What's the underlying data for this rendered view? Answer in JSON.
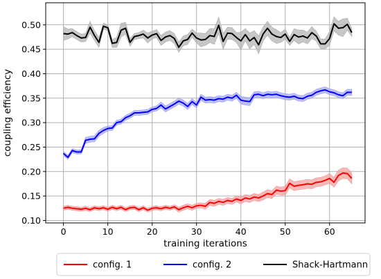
{
  "chart_data": {
    "type": "line",
    "title": "",
    "xlabel": "training iterations",
    "ylabel": "coupling efficiency",
    "xlim": [
      -4,
      68
    ],
    "ylim": [
      0.095,
      0.545
    ],
    "xticks": [
      0,
      10,
      20,
      30,
      40,
      50,
      60
    ],
    "yticks": [
      0.1,
      0.15,
      0.2,
      0.25,
      0.3,
      0.35,
      0.4,
      0.45,
      0.5
    ],
    "ytick_labels": [
      "0.10",
      "0.15",
      "0.20",
      "0.25",
      "0.30",
      "0.35",
      "0.40",
      "0.45",
      "0.50"
    ],
    "grid": true,
    "legend_position": "below plot",
    "x": [
      0,
      1,
      2,
      3,
      4,
      5,
      6,
      7,
      8,
      9,
      10,
      11,
      12,
      13,
      14,
      15,
      16,
      17,
      18,
      19,
      20,
      21,
      22,
      23,
      24,
      25,
      26,
      27,
      28,
      29,
      30,
      31,
      32,
      33,
      34,
      35,
      36,
      37,
      38,
      39,
      40,
      41,
      42,
      43,
      44,
      45,
      46,
      47,
      48,
      49,
      50,
      51,
      52,
      53,
      54,
      55,
      56,
      57,
      58,
      59,
      60,
      61,
      62,
      63,
      64,
      65
    ],
    "series": [
      {
        "name": "config. 1",
        "color": "#ff0000",
        "band_color": "#f4a0a0",
        "values": [
          0.125,
          0.127,
          0.125,
          0.124,
          0.123,
          0.125,
          0.122,
          0.126,
          0.124,
          0.126,
          0.123,
          0.127,
          0.124,
          0.127,
          0.122,
          0.126,
          0.127,
          0.122,
          0.126,
          0.121,
          0.125,
          0.126,
          0.124,
          0.127,
          0.125,
          0.128,
          0.122,
          0.126,
          0.129,
          0.126,
          0.13,
          0.131,
          0.129,
          0.137,
          0.135,
          0.139,
          0.137,
          0.141,
          0.139,
          0.144,
          0.141,
          0.146,
          0.144,
          0.148,
          0.146,
          0.15,
          0.155,
          0.153,
          0.162,
          0.16,
          0.161,
          0.176,
          0.17,
          0.172,
          0.173,
          0.175,
          0.174,
          0.178,
          0.179,
          0.182,
          0.186,
          0.178,
          0.192,
          0.197,
          0.196,
          0.186
        ],
        "band": [
          0.004,
          0.004,
          0.004,
          0.004,
          0.004,
          0.004,
          0.004,
          0.004,
          0.004,
          0.004,
          0.004,
          0.004,
          0.004,
          0.004,
          0.004,
          0.004,
          0.004,
          0.004,
          0.004,
          0.004,
          0.004,
          0.004,
          0.004,
          0.004,
          0.004,
          0.004,
          0.005,
          0.005,
          0.005,
          0.005,
          0.005,
          0.005,
          0.006,
          0.006,
          0.006,
          0.006,
          0.006,
          0.006,
          0.006,
          0.006,
          0.007,
          0.007,
          0.007,
          0.007,
          0.007,
          0.008,
          0.008,
          0.008,
          0.008,
          0.008,
          0.009,
          0.009,
          0.009,
          0.009,
          0.009,
          0.009,
          0.009,
          0.009,
          0.009,
          0.009,
          0.01,
          0.01,
          0.011,
          0.011,
          0.011,
          0.011
        ]
      },
      {
        "name": "config. 2",
        "color": "#0000ff",
        "band_color": "#a8a8f4",
        "values": [
          0.237,
          0.229,
          0.243,
          0.24,
          0.24,
          0.264,
          0.266,
          0.267,
          0.278,
          0.284,
          0.288,
          0.289,
          0.3,
          0.302,
          0.31,
          0.314,
          0.32,
          0.32,
          0.321,
          0.322,
          0.327,
          0.329,
          0.336,
          0.328,
          0.333,
          0.338,
          0.344,
          0.34,
          0.333,
          0.343,
          0.336,
          0.352,
          0.346,
          0.347,
          0.346,
          0.349,
          0.348,
          0.352,
          0.35,
          0.356,
          0.346,
          0.344,
          0.343,
          0.357,
          0.358,
          0.355,
          0.358,
          0.357,
          0.358,
          0.355,
          0.353,
          0.352,
          0.354,
          0.35,
          0.349,
          0.354,
          0.356,
          0.362,
          0.365,
          0.367,
          0.363,
          0.361,
          0.357,
          0.355,
          0.362,
          0.362
        ],
        "band": [
          0.004,
          0.004,
          0.004,
          0.004,
          0.004,
          0.006,
          0.006,
          0.006,
          0.006,
          0.006,
          0.005,
          0.005,
          0.005,
          0.005,
          0.005,
          0.005,
          0.005,
          0.005,
          0.005,
          0.005,
          0.005,
          0.005,
          0.006,
          0.006,
          0.006,
          0.006,
          0.006,
          0.006,
          0.006,
          0.006,
          0.006,
          0.006,
          0.006,
          0.006,
          0.006,
          0.006,
          0.006,
          0.006,
          0.006,
          0.006,
          0.008,
          0.008,
          0.008,
          0.006,
          0.006,
          0.006,
          0.006,
          0.006,
          0.006,
          0.006,
          0.006,
          0.006,
          0.006,
          0.006,
          0.006,
          0.006,
          0.006,
          0.006,
          0.006,
          0.006,
          0.006,
          0.006,
          0.006,
          0.006,
          0.006,
          0.006
        ]
      },
      {
        "name": "Shack-Hartmann",
        "color": "#000000",
        "band_color": "#b4b4b4",
        "values": [
          0.482,
          0.481,
          0.484,
          0.478,
          0.473,
          0.474,
          0.495,
          0.478,
          0.464,
          0.497,
          0.494,
          0.462,
          0.464,
          0.489,
          0.493,
          0.464,
          0.476,
          0.478,
          0.481,
          0.473,
          0.479,
          0.482,
          0.468,
          0.475,
          0.478,
          0.472,
          0.454,
          0.467,
          0.47,
          0.483,
          0.473,
          0.469,
          0.47,
          0.478,
          0.476,
          0.499,
          0.466,
          0.483,
          0.482,
          0.474,
          0.467,
          0.48,
          0.467,
          0.474,
          0.459,
          0.481,
          0.493,
          0.481,
          0.476,
          0.474,
          0.481,
          0.466,
          0.48,
          0.475,
          0.477,
          0.473,
          0.484,
          0.477,
          0.461,
          0.461,
          0.472,
          0.502,
          0.493,
          0.494,
          0.501,
          0.484
        ],
        "band": [
          0.014,
          0.01,
          0.008,
          0.008,
          0.008,
          0.008,
          0.012,
          0.01,
          0.01,
          0.006,
          0.006,
          0.008,
          0.01,
          0.014,
          0.012,
          0.008,
          0.006,
          0.006,
          0.008,
          0.01,
          0.008,
          0.008,
          0.01,
          0.01,
          0.01,
          0.01,
          0.01,
          0.01,
          0.01,
          0.008,
          0.01,
          0.014,
          0.012,
          0.014,
          0.016,
          0.016,
          0.016,
          0.012,
          0.012,
          0.01,
          0.018,
          0.012,
          0.016,
          0.014,
          0.018,
          0.014,
          0.014,
          0.014,
          0.014,
          0.01,
          0.01,
          0.008,
          0.012,
          0.014,
          0.012,
          0.012,
          0.012,
          0.01,
          0.01,
          0.01,
          0.014,
          0.014,
          0.014,
          0.018,
          0.012,
          0.008
        ]
      }
    ]
  },
  "colors": {
    "grid": "#b0b0b0",
    "axis": "#000000",
    "background": "#ffffff"
  }
}
